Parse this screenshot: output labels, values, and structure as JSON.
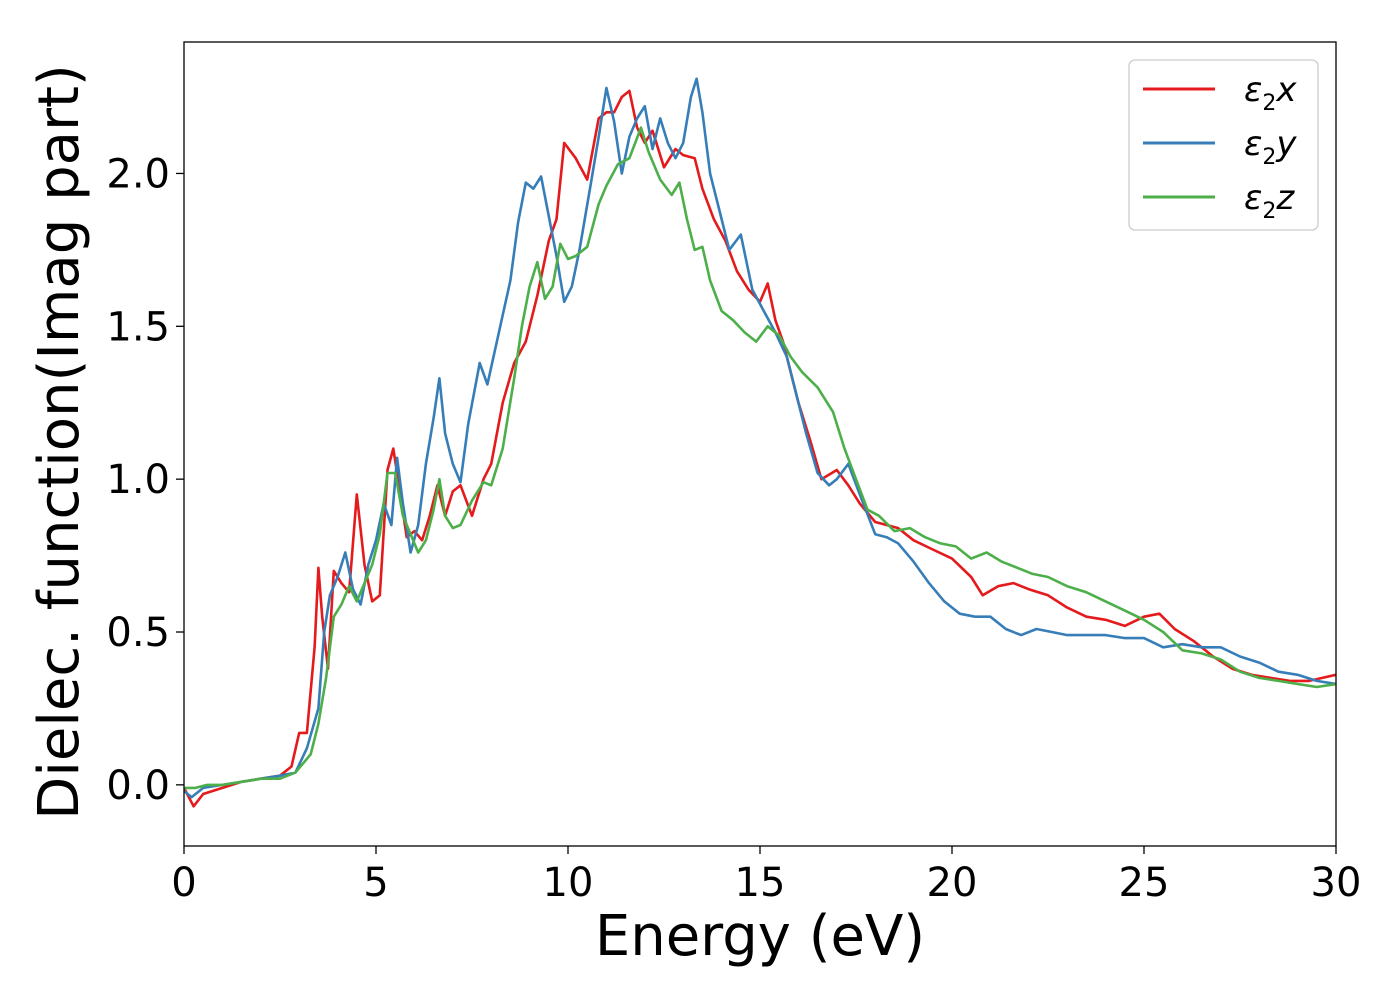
{
  "chart_data": {
    "type": "line",
    "xlabel": "Energy (eV)",
    "ylabel": "Dielec. function(Imag part)",
    "xlim": [
      0,
      30
    ],
    "ylim": [
      -0.2,
      2.43
    ],
    "x_ticks": [
      "0",
      "5",
      "10",
      "15",
      "20",
      "25",
      "30"
    ],
    "y_ticks": [
      "0.0",
      "0.5",
      "1.0",
      "1.5",
      "2.0"
    ],
    "legend_position": "top-right",
    "grid": false,
    "series": [
      {
        "name": "ε2x",
        "label_main": "ε",
        "label_sub": "2",
        "label_tail": "x",
        "color": "#e41a1c",
        "points": [
          [
            0,
            -0.01
          ],
          [
            0.25,
            -0.07
          ],
          [
            0.5,
            -0.03
          ],
          [
            1,
            -0.01
          ],
          [
            1.5,
            0.01
          ],
          [
            2,
            0.02
          ],
          [
            2.5,
            0.03
          ],
          [
            2.8,
            0.06
          ],
          [
            3,
            0.17
          ],
          [
            3.2,
            0.17
          ],
          [
            3.4,
            0.45
          ],
          [
            3.5,
            0.71
          ],
          [
            3.6,
            0.55
          ],
          [
            3.75,
            0.38
          ],
          [
            3.9,
            0.7
          ],
          [
            4.1,
            0.66
          ],
          [
            4.3,
            0.63
          ],
          [
            4.5,
            0.95
          ],
          [
            4.7,
            0.72
          ],
          [
            4.9,
            0.6
          ],
          [
            5.1,
            0.62
          ],
          [
            5.3,
            1.03
          ],
          [
            5.45,
            1.1
          ],
          [
            5.6,
            0.98
          ],
          [
            5.8,
            0.81
          ],
          [
            6,
            0.83
          ],
          [
            6.2,
            0.8
          ],
          [
            6.4,
            0.88
          ],
          [
            6.6,
            0.98
          ],
          [
            6.8,
            0.88
          ],
          [
            7,
            0.96
          ],
          [
            7.2,
            0.98
          ],
          [
            7.5,
            0.88
          ],
          [
            7.8,
            1.0
          ],
          [
            8,
            1.05
          ],
          [
            8.3,
            1.25
          ],
          [
            8.6,
            1.38
          ],
          [
            8.9,
            1.45
          ],
          [
            9.2,
            1.6
          ],
          [
            9.5,
            1.78
          ],
          [
            9.7,
            1.85
          ],
          [
            9.9,
            2.1
          ],
          [
            10.2,
            2.05
          ],
          [
            10.5,
            1.98
          ],
          [
            10.8,
            2.18
          ],
          [
            11,
            2.2
          ],
          [
            11.2,
            2.2
          ],
          [
            11.4,
            2.25
          ],
          [
            11.6,
            2.27
          ],
          [
            11.8,
            2.15
          ],
          [
            12,
            2.1
          ],
          [
            12.2,
            2.14
          ],
          [
            12.5,
            2.02
          ],
          [
            12.8,
            2.08
          ],
          [
            13,
            2.06
          ],
          [
            13.3,
            2.05
          ],
          [
            13.5,
            1.95
          ],
          [
            13.8,
            1.85
          ],
          [
            14.1,
            1.78
          ],
          [
            14.4,
            1.68
          ],
          [
            14.7,
            1.62
          ],
          [
            15,
            1.58
          ],
          [
            15.2,
            1.64
          ],
          [
            15.4,
            1.52
          ],
          [
            15.6,
            1.45
          ],
          [
            15.8,
            1.35
          ],
          [
            16,
            1.25
          ],
          [
            16.3,
            1.13
          ],
          [
            16.6,
            1.0
          ],
          [
            17,
            1.03
          ],
          [
            17.3,
            0.98
          ],
          [
            17.6,
            0.92
          ],
          [
            18,
            0.86
          ],
          [
            18.3,
            0.85
          ],
          [
            18.6,
            0.84
          ],
          [
            19,
            0.8
          ],
          [
            19.5,
            0.77
          ],
          [
            20,
            0.74
          ],
          [
            20.5,
            0.68
          ],
          [
            20.8,
            0.62
          ],
          [
            21.2,
            0.65
          ],
          [
            21.6,
            0.66
          ],
          [
            22,
            0.64
          ],
          [
            22.5,
            0.62
          ],
          [
            23,
            0.58
          ],
          [
            23.5,
            0.55
          ],
          [
            24,
            0.54
          ],
          [
            24.5,
            0.52
          ],
          [
            25,
            0.55
          ],
          [
            25.4,
            0.56
          ],
          [
            25.8,
            0.51
          ],
          [
            26.3,
            0.47
          ],
          [
            26.8,
            0.42
          ],
          [
            27.3,
            0.38
          ],
          [
            27.8,
            0.36
          ],
          [
            28.3,
            0.35
          ],
          [
            28.8,
            0.34
          ],
          [
            29.3,
            0.34
          ],
          [
            30,
            0.36
          ]
        ]
      },
      {
        "name": "ε2y",
        "label_main": "ε",
        "label_sub": "2",
        "label_tail": "y",
        "color": "#377eb8",
        "points": [
          [
            0,
            -0.02
          ],
          [
            0.2,
            -0.04
          ],
          [
            0.5,
            -0.01
          ],
          [
            1,
            0.0
          ],
          [
            1.5,
            0.01
          ],
          [
            2,
            0.02
          ],
          [
            2.5,
            0.03
          ],
          [
            2.9,
            0.04
          ],
          [
            3.2,
            0.12
          ],
          [
            3.5,
            0.25
          ],
          [
            3.65,
            0.5
          ],
          [
            3.8,
            0.62
          ],
          [
            4,
            0.68
          ],
          [
            4.2,
            0.76
          ],
          [
            4.4,
            0.64
          ],
          [
            4.6,
            0.59
          ],
          [
            4.8,
            0.72
          ],
          [
            5,
            0.8
          ],
          [
            5.2,
            0.92
          ],
          [
            5.4,
            0.85
          ],
          [
            5.55,
            1.07
          ],
          [
            5.7,
            0.92
          ],
          [
            5.9,
            0.76
          ],
          [
            6.1,
            0.85
          ],
          [
            6.3,
            1.05
          ],
          [
            6.5,
            1.2
          ],
          [
            6.65,
            1.33
          ],
          [
            6.8,
            1.15
          ],
          [
            7,
            1.05
          ],
          [
            7.2,
            0.99
          ],
          [
            7.4,
            1.18
          ],
          [
            7.7,
            1.38
          ],
          [
            7.9,
            1.31
          ],
          [
            8.2,
            1.48
          ],
          [
            8.5,
            1.65
          ],
          [
            8.7,
            1.84
          ],
          [
            8.9,
            1.97
          ],
          [
            9.1,
            1.95
          ],
          [
            9.3,
            1.99
          ],
          [
            9.5,
            1.86
          ],
          [
            9.7,
            1.73
          ],
          [
            9.9,
            1.58
          ],
          [
            10.1,
            1.63
          ],
          [
            10.3,
            1.75
          ],
          [
            10.6,
            1.97
          ],
          [
            10.8,
            2.12
          ],
          [
            11,
            2.28
          ],
          [
            11.2,
            2.17
          ],
          [
            11.4,
            2.0
          ],
          [
            11.6,
            2.12
          ],
          [
            11.8,
            2.18
          ],
          [
            12,
            2.22
          ],
          [
            12.2,
            2.08
          ],
          [
            12.4,
            2.18
          ],
          [
            12.6,
            2.1
          ],
          [
            12.8,
            2.05
          ],
          [
            13.0,
            2.1
          ],
          [
            13.2,
            2.25
          ],
          [
            13.35,
            2.31
          ],
          [
            13.5,
            2.2
          ],
          [
            13.7,
            2.0
          ],
          [
            13.9,
            1.9
          ],
          [
            14.2,
            1.75
          ],
          [
            14.5,
            1.8
          ],
          [
            14.8,
            1.62
          ],
          [
            15.1,
            1.55
          ],
          [
            15.4,
            1.48
          ],
          [
            15.7,
            1.4
          ],
          [
            15.9,
            1.3
          ],
          [
            16.2,
            1.15
          ],
          [
            16.5,
            1.02
          ],
          [
            16.8,
            0.98
          ],
          [
            17,
            1.0
          ],
          [
            17.3,
            1.05
          ],
          [
            17.6,
            0.95
          ],
          [
            18,
            0.82
          ],
          [
            18.3,
            0.81
          ],
          [
            18.6,
            0.79
          ],
          [
            19,
            0.73
          ],
          [
            19.4,
            0.66
          ],
          [
            19.8,
            0.6
          ],
          [
            20.2,
            0.56
          ],
          [
            20.6,
            0.55
          ],
          [
            21,
            0.55
          ],
          [
            21.4,
            0.51
          ],
          [
            21.8,
            0.49
          ],
          [
            22.2,
            0.51
          ],
          [
            22.6,
            0.5
          ],
          [
            23,
            0.49
          ],
          [
            23.5,
            0.49
          ],
          [
            24,
            0.49
          ],
          [
            24.5,
            0.48
          ],
          [
            25,
            0.48
          ],
          [
            25.5,
            0.45
          ],
          [
            26,
            0.46
          ],
          [
            26.5,
            0.45
          ],
          [
            27,
            0.45
          ],
          [
            27.5,
            0.42
          ],
          [
            28,
            0.4
          ],
          [
            28.5,
            0.37
          ],
          [
            29,
            0.36
          ],
          [
            29.5,
            0.34
          ],
          [
            30,
            0.33
          ]
        ]
      },
      {
        "name": "ε2z",
        "label_main": "ε",
        "label_sub": "2",
        "label_tail": "z",
        "color": "#4daf4a",
        "points": [
          [
            0,
            -0.01
          ],
          [
            0.3,
            -0.01
          ],
          [
            0.6,
            0.0
          ],
          [
            1,
            0.0
          ],
          [
            1.5,
            0.01
          ],
          [
            2,
            0.02
          ],
          [
            2.5,
            0.02
          ],
          [
            2.9,
            0.04
          ],
          [
            3.3,
            0.1
          ],
          [
            3.5,
            0.2
          ],
          [
            3.7,
            0.35
          ],
          [
            3.9,
            0.55
          ],
          [
            4.1,
            0.59
          ],
          [
            4.3,
            0.65
          ],
          [
            4.5,
            0.6
          ],
          [
            4.7,
            0.66
          ],
          [
            4.9,
            0.72
          ],
          [
            5.1,
            0.82
          ],
          [
            5.3,
            1.02
          ],
          [
            5.5,
            1.02
          ],
          [
            5.7,
            0.88
          ],
          [
            5.9,
            0.82
          ],
          [
            6.1,
            0.76
          ],
          [
            6.3,
            0.8
          ],
          [
            6.5,
            0.9
          ],
          [
            6.65,
            1.0
          ],
          [
            6.8,
            0.88
          ],
          [
            7,
            0.84
          ],
          [
            7.2,
            0.85
          ],
          [
            7.5,
            0.93
          ],
          [
            7.8,
            0.99
          ],
          [
            8,
            0.98
          ],
          [
            8.3,
            1.1
          ],
          [
            8.6,
            1.33
          ],
          [
            8.8,
            1.5
          ],
          [
            9,
            1.63
          ],
          [
            9.2,
            1.71
          ],
          [
            9.4,
            1.59
          ],
          [
            9.6,
            1.63
          ],
          [
            9.8,
            1.77
          ],
          [
            10,
            1.72
          ],
          [
            10.2,
            1.73
          ],
          [
            10.5,
            1.76
          ],
          [
            10.8,
            1.9
          ],
          [
            11,
            1.96
          ],
          [
            11.3,
            2.03
          ],
          [
            11.6,
            2.05
          ],
          [
            11.9,
            2.15
          ],
          [
            12.1,
            2.07
          ],
          [
            12.4,
            1.98
          ],
          [
            12.7,
            1.93
          ],
          [
            12.9,
            1.97
          ],
          [
            13.1,
            1.85
          ],
          [
            13.3,
            1.75
          ],
          [
            13.5,
            1.76
          ],
          [
            13.7,
            1.65
          ],
          [
            14,
            1.55
          ],
          [
            14.3,
            1.52
          ],
          [
            14.6,
            1.48
          ],
          [
            14.9,
            1.45
          ],
          [
            15.2,
            1.5
          ],
          [
            15.5,
            1.47
          ],
          [
            15.8,
            1.4
          ],
          [
            16.1,
            1.35
          ],
          [
            16.5,
            1.3
          ],
          [
            16.9,
            1.22
          ],
          [
            17.2,
            1.1
          ],
          [
            17.5,
            1.0
          ],
          [
            17.8,
            0.9
          ],
          [
            18.1,
            0.88
          ],
          [
            18.5,
            0.83
          ],
          [
            18.9,
            0.84
          ],
          [
            19.3,
            0.81
          ],
          [
            19.7,
            0.79
          ],
          [
            20.1,
            0.78
          ],
          [
            20.5,
            0.74
          ],
          [
            20.9,
            0.76
          ],
          [
            21.3,
            0.73
          ],
          [
            21.7,
            0.71
          ],
          [
            22.1,
            0.69
          ],
          [
            22.5,
            0.68
          ],
          [
            23,
            0.65
          ],
          [
            23.5,
            0.63
          ],
          [
            24,
            0.6
          ],
          [
            24.5,
            0.57
          ],
          [
            25,
            0.54
          ],
          [
            25.5,
            0.5
          ],
          [
            26,
            0.44
          ],
          [
            26.5,
            0.43
          ],
          [
            27,
            0.41
          ],
          [
            27.5,
            0.37
          ],
          [
            28,
            0.35
          ],
          [
            28.5,
            0.34
          ],
          [
            29,
            0.33
          ],
          [
            29.5,
            0.32
          ],
          [
            30,
            0.33
          ]
        ]
      }
    ]
  }
}
